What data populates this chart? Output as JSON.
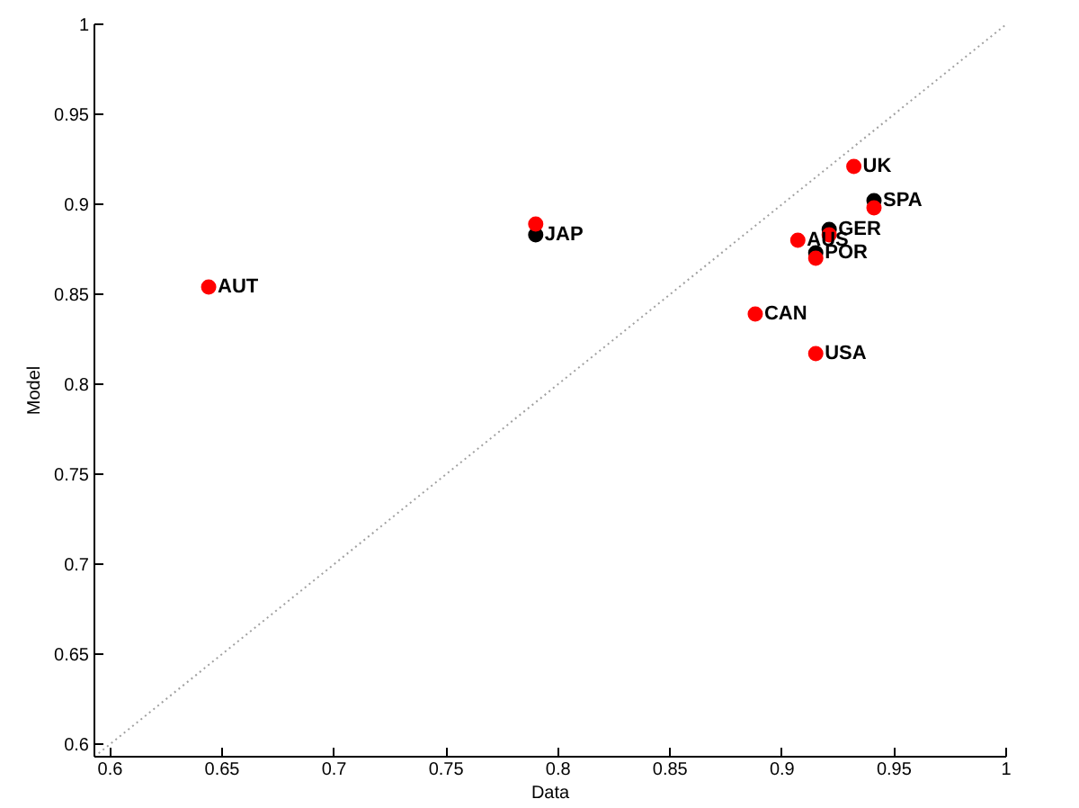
{
  "chart_data": {
    "type": "scatter",
    "xlabel": "Data",
    "ylabel": "Model",
    "marker": "circle",
    "xlim": [
      0.593,
      1
    ],
    "ylim": [
      0.593,
      1
    ],
    "xticks": [
      0.6,
      0.65,
      0.7,
      0.75,
      0.8,
      0.85,
      0.9,
      0.95,
      1
    ],
    "yticks": [
      0.6,
      0.65,
      0.7,
      0.75,
      0.8,
      0.85,
      0.9,
      0.95,
      1
    ],
    "series": [
      {
        "type": "line",
        "color": "#a0a0a0",
        "line_style": "dotted",
        "marker": "none",
        "x": [
          0.593,
          1
        ],
        "values": [
          0.593,
          1
        ]
      },
      {
        "color": "#000000",
        "x": [
          0.79,
          0.941,
          0.921,
          0.915
        ],
        "values": [
          0.883,
          0.902,
          0.886,
          0.873
        ]
      },
      {
        "color": "#ff0000",
        "x": [
          0.644,
          0.79,
          0.888,
          0.907,
          0.915,
          0.915,
          0.921,
          0.932,
          0.941
        ],
        "values": [
          0.854,
          0.889,
          0.839,
          0.88,
          0.87,
          0.817,
          0.883,
          0.921,
          0.898
        ]
      }
    ],
    "annotations": [
      {
        "text": "AUT",
        "x": 0.644,
        "y": 0.854
      },
      {
        "text": "JAP",
        "x": 0.79,
        "y": 0.883
      },
      {
        "text": "CAN",
        "x": 0.888,
        "y": 0.839
      },
      {
        "text": "AUS",
        "x": 0.907,
        "y": 0.88
      },
      {
        "text": "POR",
        "x": 0.915,
        "y": 0.873
      },
      {
        "text": "USA",
        "x": 0.915,
        "y": 0.817
      },
      {
        "text": "GER",
        "x": 0.921,
        "y": 0.886
      },
      {
        "text": "UK",
        "x": 0.932,
        "y": 0.921
      },
      {
        "text": "SPA",
        "x": 0.941,
        "y": 0.902
      }
    ]
  }
}
